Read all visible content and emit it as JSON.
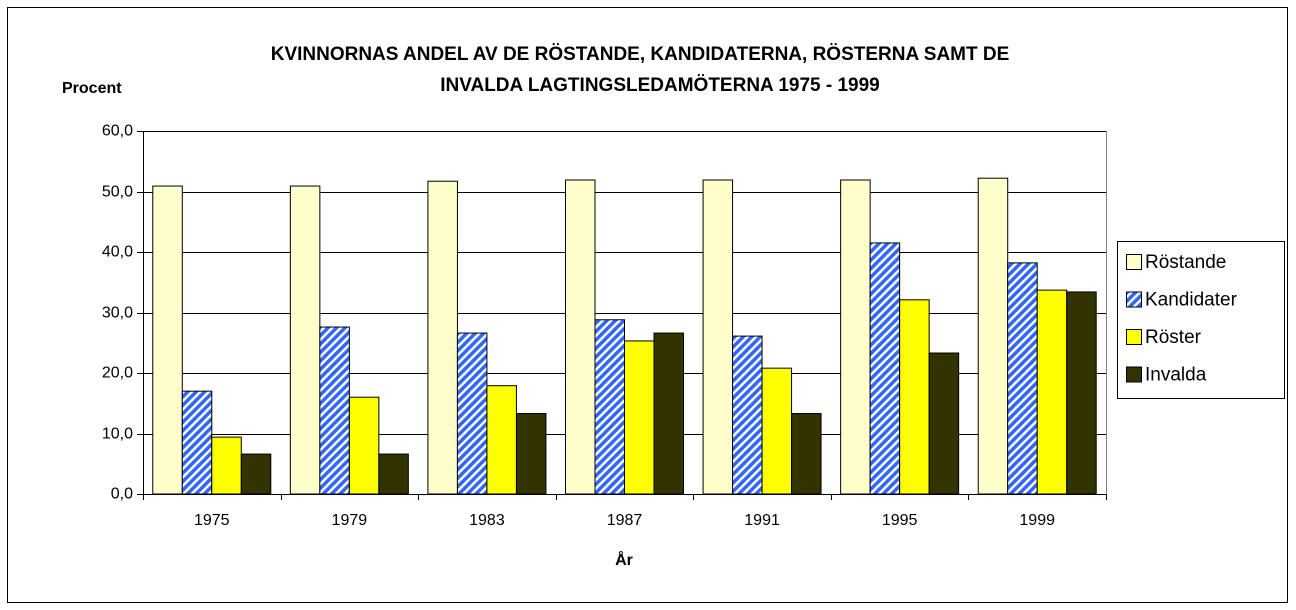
{
  "chart_data": {
    "type": "bar",
    "title": [
      "KVINNORNAS ANDEL AV DE RÖSTANDE, KANDIDATERNA, RÖSTERNA SAMT DE",
      "INVALDA LAGTINGSLEDAMÖTERNA 1975 - 1999"
    ],
    "y_label": "Procent",
    "x_label": "År",
    "categories": [
      "1975",
      "1979",
      "1983",
      "1987",
      "1991",
      "1995",
      "1999"
    ],
    "series": [
      {
        "name": "Röstande",
        "color": "#ffffcc",
        "values": [
          50.9,
          50.9,
          51.7,
          51.9,
          51.9,
          51.9,
          52.2
        ]
      },
      {
        "name": "Kandidater",
        "color": "#3366ff",
        "pattern": "diagonal",
        "values": [
          17.0,
          27.6,
          26.6,
          28.8,
          26.1,
          41.5,
          38.2
        ]
      },
      {
        "name": "Röster",
        "color": "#ffff00",
        "values": [
          9.4,
          16.0,
          17.9,
          25.3,
          20.8,
          32.1,
          33.7
        ]
      },
      {
        "name": "Invalda",
        "color": "#333300",
        "values": [
          6.6,
          6.6,
          13.3,
          26.6,
          13.3,
          23.3,
          33.4
        ]
      }
    ],
    "ylim": [
      0,
      60
    ],
    "yticks": [
      {
        "value": 0,
        "label": "0,0"
      },
      {
        "value": 10,
        "label": "10,0"
      },
      {
        "value": 20,
        "label": "20,0"
      },
      {
        "value": 30,
        "label": "30,0"
      },
      {
        "value": 40,
        "label": "40,0"
      },
      {
        "value": 50,
        "label": "50,0"
      },
      {
        "value": 60,
        "label": "60,0"
      }
    ],
    "grid": true,
    "legend": "right"
  }
}
